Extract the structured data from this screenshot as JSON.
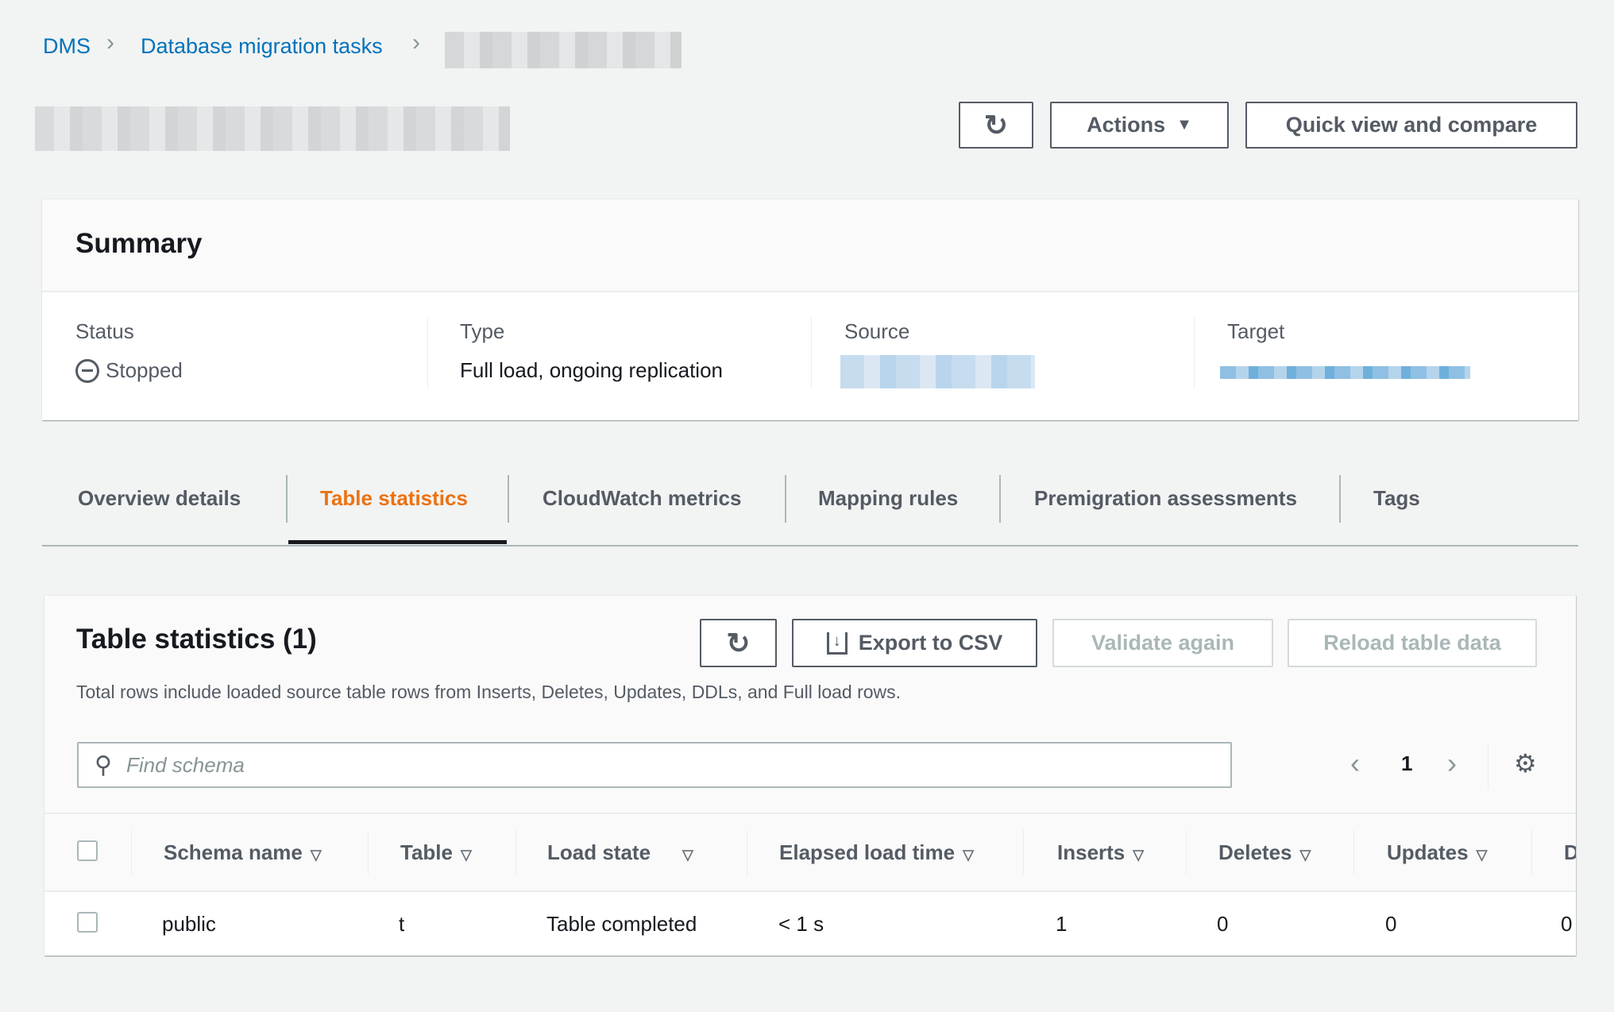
{
  "breadcrumb": {
    "items": [
      "DMS",
      "Database migration tasks"
    ]
  },
  "header": {
    "actions_label": "Actions",
    "quick_view_label": "Quick view and compare"
  },
  "summary": {
    "title": "Summary",
    "status_label": "Status",
    "status_value": "Stopped",
    "type_label": "Type",
    "type_value": "Full load, ongoing replication",
    "source_label": "Source",
    "target_label": "Target"
  },
  "tabs": [
    {
      "label": "Overview details"
    },
    {
      "label": "Table statistics",
      "active": true
    },
    {
      "label": "CloudWatch metrics"
    },
    {
      "label": "Mapping rules"
    },
    {
      "label": "Premigration assessments"
    },
    {
      "label": "Tags"
    }
  ],
  "table_stats": {
    "title": "Table statistics (1)",
    "export_label": "Export to CSV",
    "validate_label": "Validate again",
    "reload_label": "Reload table data",
    "description": "Total rows include loaded source table rows from Inserts, Deletes, Updates, DDLs, and Full load rows.",
    "search_placeholder": "Find schema",
    "page": "1",
    "columns": [
      "Schema name",
      "Table",
      "Load state",
      "Elapsed load time",
      "Inserts",
      "Deletes",
      "Updates",
      "D"
    ],
    "rows": [
      [
        "public",
        "t",
        "Table completed",
        "< 1 s",
        "1",
        "0",
        "0",
        "0"
      ]
    ]
  },
  "colors": {
    "link": "#0073bb",
    "active_tab": "#ec7211",
    "text": "#16191f",
    "muted": "#545b64"
  }
}
